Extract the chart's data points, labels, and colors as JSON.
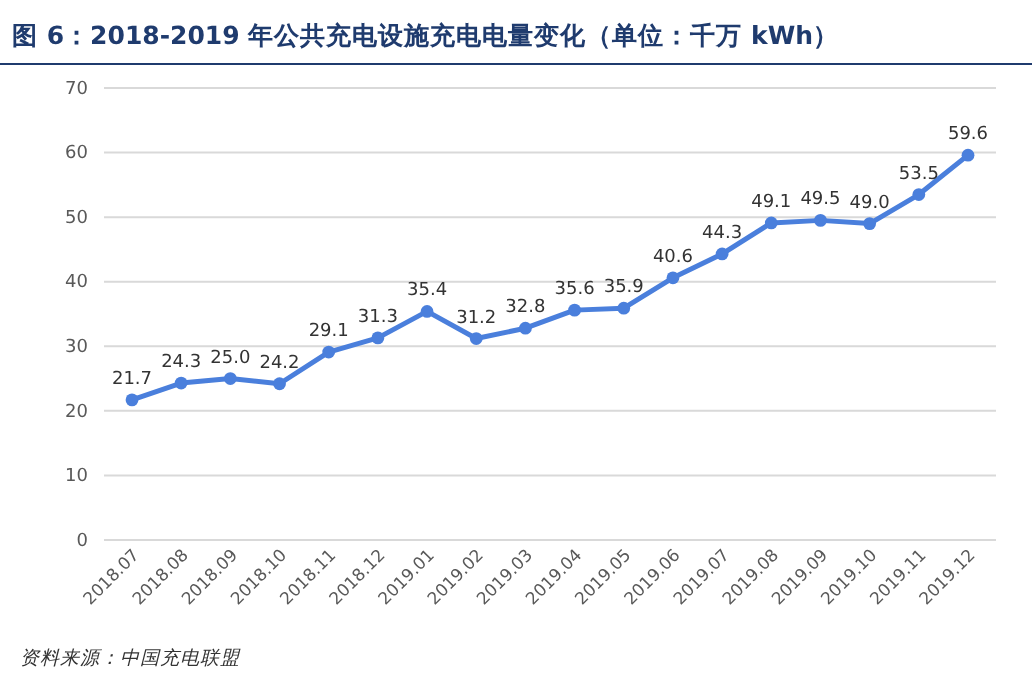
{
  "chart_data": {
    "type": "line",
    "title": "图 6：2018-2019 年公共充电设施充电电量变化（单位：千万 kWh）",
    "categories": [
      "2018.07",
      "2018.08",
      "2018.09",
      "2018.10",
      "2018.11",
      "2018.12",
      "2019.01",
      "2019.02",
      "2019.03",
      "2019.04",
      "2019.05",
      "2019.06",
      "2019.07",
      "2019.08",
      "2019.09",
      "2019.10",
      "2019.11",
      "2019.12"
    ],
    "series": [
      {
        "color": "#4a7fdc",
        "values": [
          21.7,
          24.3,
          25.0,
          24.2,
          29.1,
          31.3,
          35.4,
          31.2,
          32.8,
          35.6,
          35.9,
          40.6,
          44.3,
          49.1,
          49.5,
          49.0,
          53.5,
          59.6
        ],
        "value_labels": [
          "21.7",
          "24.3",
          "25.0",
          "24.2",
          "29.1",
          "31.3",
          "35.4",
          "31.2",
          "32.8",
          "35.6",
          "35.9",
          "40.6",
          "44.3",
          "49.1",
          "49.5",
          "49.0",
          "53.5",
          "59.6"
        ]
      }
    ],
    "ylim": [
      0,
      70
    ],
    "yticks": [
      0,
      10,
      20,
      30,
      40,
      50,
      60,
      70
    ],
    "grid": "y",
    "marker": "circle",
    "line_style": "solid",
    "annotations": [
      "资料来源：中国充电联盟"
    ]
  }
}
